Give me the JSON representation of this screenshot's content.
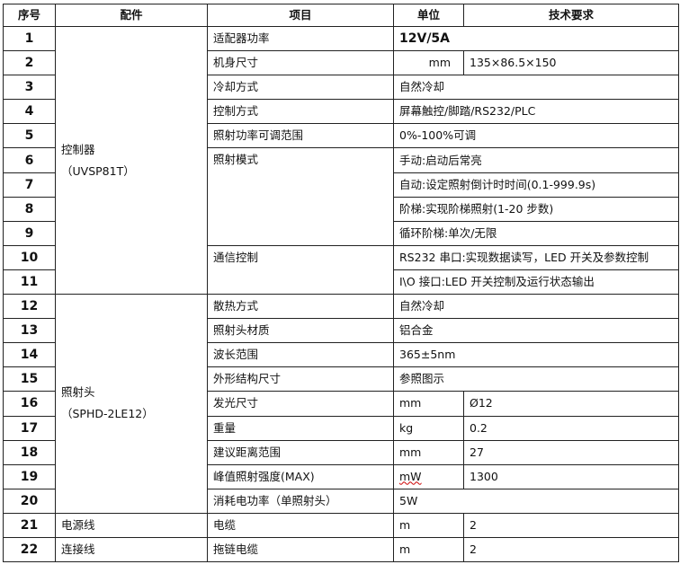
{
  "headers": [
    "序号",
    "配件",
    "项目",
    "单位",
    "技术要求"
  ],
  "parts": {
    "controller": {
      "name": "控制器",
      "model": "（UVSP81T）"
    },
    "head": {
      "name": "照射头",
      "model": "（SPHD-2LE12）"
    },
    "power_cable": "电源线",
    "connect_cable": "连接线"
  },
  "rows": [
    {
      "no": "1",
      "item": "适配器功率",
      "spec": "12V/5A"
    },
    {
      "no": "2",
      "item": "机身尺寸",
      "unit": "mm",
      "spec": "135×86.5×150"
    },
    {
      "no": "3",
      "item": "冷却方式",
      "spec": "自然冷却"
    },
    {
      "no": "4",
      "item": "控制方式",
      "spec": "屏幕触控/脚踏/RS232/PLC"
    },
    {
      "no": "5",
      "item": "照射功率可调范围",
      "spec": "0%-100%可调"
    },
    {
      "no": "6",
      "item": "照射模式",
      "spec": "手动:启动后常亮"
    },
    {
      "no": "7",
      "spec": "自动:设定照射倒计时时间(0.1-999.9s)"
    },
    {
      "no": "8",
      "spec": "阶梯:实现阶梯照射(1-20 步数)"
    },
    {
      "no": "9",
      "spec": "循环阶梯:单次/无限"
    },
    {
      "no": "10",
      "item": "通信控制",
      "spec": "RS232 串口:实现数据读写，LED 开关及参数控制"
    },
    {
      "no": "11",
      "spec": "I\\O 接口:LED 开关控制及运行状态输出"
    },
    {
      "no": "12",
      "item": "散热方式",
      "spec": "自然冷却"
    },
    {
      "no": "13",
      "item": "照射头材质",
      "spec": "铝合金"
    },
    {
      "no": "14",
      "item": "波长范围",
      "spec": "365±5nm"
    },
    {
      "no": "15",
      "item": "外形结构尺寸",
      "spec": "参照图示"
    },
    {
      "no": "16",
      "item": "发光尺寸",
      "unit": "mm",
      "spec": "Ø12"
    },
    {
      "no": "17",
      "item": "重量",
      "unit": "kg",
      "spec": "0.2"
    },
    {
      "no": "18",
      "item": "建议距离范围",
      "unit": "mm",
      "spec": "27"
    },
    {
      "no": "19",
      "item": "峰值照射强度(MAX)",
      "unit": "mW",
      "spec": "1300"
    },
    {
      "no": "20",
      "item": "消耗电功率（单照射头）",
      "spec": "5W"
    },
    {
      "no": "21",
      "item": "电缆",
      "unit": "m",
      "spec": "2"
    },
    {
      "no": "22",
      "item": "拖链电缆",
      "unit": "m",
      "spec": "2"
    }
  ]
}
